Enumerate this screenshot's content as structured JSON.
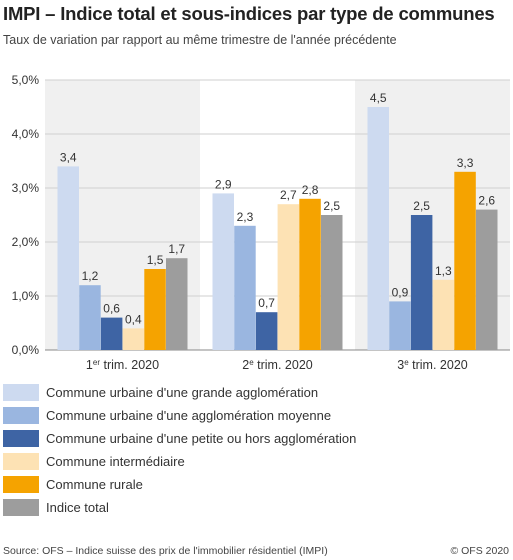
{
  "header": {
    "title": "IMPI – Indice total et sous-indices par type de communes",
    "subtitle": "Taux de variation par rapport au même trimestre de l'année précédente"
  },
  "chart_data": {
    "type": "bar",
    "categories": [
      {
        "prefix": "1",
        "sup": "er",
        "suffix": " trim. 2020"
      },
      {
        "prefix": "2",
        "sup": "e",
        "suffix": " trim. 2020"
      },
      {
        "prefix": "3",
        "sup": "e",
        "suffix": " trim. 2020"
      }
    ],
    "series": [
      {
        "name": "Commune urbaine d'une grande agglomération",
        "color": "#cddaf0",
        "values": [
          3.4,
          2.9,
          4.5
        ],
        "labels": [
          "3,4",
          "2,9",
          "4,5"
        ]
      },
      {
        "name": "Commune urbaine d'une agglomération moyenne",
        "color": "#9ab6e0",
        "values": [
          1.2,
          2.3,
          0.9
        ],
        "labels": [
          "1,2",
          "2,3",
          "0,9"
        ]
      },
      {
        "name": "Commune urbaine d'une petite ou hors agglomération",
        "color": "#3e64a4",
        "values": [
          0.6,
          0.7,
          2.5
        ],
        "labels": [
          "0,6",
          "0,7",
          "2,5"
        ]
      },
      {
        "name": "Commune intermédiaire",
        "color": "#fde2b4",
        "values": [
          0.4,
          2.7,
          1.3
        ],
        "labels": [
          "0,4",
          "2,7",
          "1,3"
        ]
      },
      {
        "name": "Commune rurale",
        "color": "#f5a300",
        "values": [
          1.5,
          2.8,
          3.3
        ],
        "labels": [
          "1,5",
          "2,8",
          "3,3"
        ]
      },
      {
        "name": "Indice total",
        "color": "#9d9d9d",
        "values": [
          1.7,
          2.5,
          2.6
        ],
        "labels": [
          "1,7",
          "2,5",
          "2,6"
        ]
      }
    ],
    "ylim": [
      0,
      5
    ],
    "yticks": [
      0,
      1,
      2,
      3,
      4,
      5
    ],
    "ytick_labels": [
      "0,0%",
      "1,0%",
      "2,0%",
      "3,0%",
      "4,0%",
      "5,0%"
    ],
    "grid": true,
    "legend_position": "bottom"
  },
  "footer": {
    "source": "Source: OFS – Indice suisse des prix de l'immobilier résidentiel (IMPI)",
    "copyright": "© OFS 2020"
  }
}
